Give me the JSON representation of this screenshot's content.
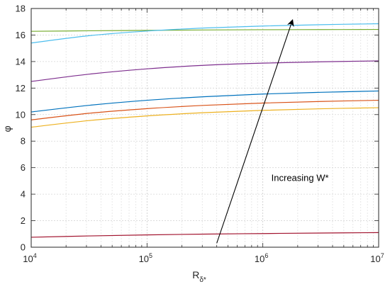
{
  "chart_data": {
    "type": "line",
    "xscale": "log",
    "xlim": [
      10000,
      10000000
    ],
    "ylim": [
      0,
      18
    ],
    "ylabel": "φ",
    "xlabel_main": "R",
    "xlabel_sub": "δ*",
    "x_ticks": [
      {
        "value": 10000,
        "base": "10",
        "exp": "4"
      },
      {
        "value": 100000,
        "base": "10",
        "exp": "5"
      },
      {
        "value": 1000000,
        "base": "10",
        "exp": "6"
      },
      {
        "value": 10000000,
        "base": "10",
        "exp": "7"
      }
    ],
    "y_ticks": [
      "0",
      "2",
      "4",
      "6",
      "8",
      "10",
      "12",
      "14",
      "16",
      "18"
    ],
    "grid": true,
    "x": [
      10000,
      31623,
      100000,
      316228,
      1000000,
      3162278,
      10000000
    ],
    "series": [
      {
        "color": "#A2142F",
        "values": [
          0.75,
          0.85,
          0.93,
          0.99,
          1.03,
          1.07,
          1.1
        ]
      },
      {
        "color": "#EDB120",
        "values": [
          9.05,
          9.55,
          9.9,
          10.15,
          10.32,
          10.44,
          10.52
        ]
      },
      {
        "color": "#D95319",
        "values": [
          9.6,
          10.1,
          10.45,
          10.7,
          10.87,
          10.99,
          11.08
        ]
      },
      {
        "color": "#0072BD",
        "values": [
          10.2,
          10.7,
          11.08,
          11.35,
          11.55,
          11.68,
          11.78
        ]
      },
      {
        "color": "#7E2F8E",
        "values": [
          12.5,
          13.05,
          13.45,
          13.72,
          13.88,
          13.98,
          14.05
        ]
      },
      {
        "color": "#77AC30",
        "values": [
          16.28,
          16.32,
          16.35,
          16.38,
          16.4,
          16.41,
          16.42
        ]
      },
      {
        "color": "#4DBEEE",
        "values": [
          15.4,
          15.95,
          16.3,
          16.53,
          16.68,
          16.78,
          16.85
        ]
      }
    ],
    "annotation": {
      "text": "Increasing W*",
      "arrow_from": [
        400000,
        0.3
      ],
      "arrow_to": [
        1800000,
        17.1
      ],
      "text_at": [
        1000000,
        5.0
      ]
    }
  }
}
